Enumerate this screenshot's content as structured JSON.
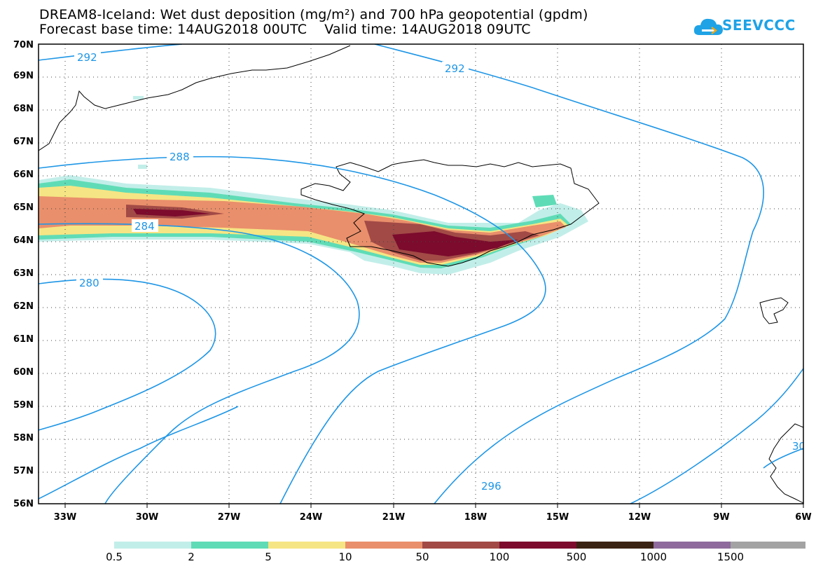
{
  "header": {
    "title_line1": "DREAM8-Iceland: Wet dust deposition (mg/m²) and 700 hPa geopotential (gpdm)",
    "title_line2": "Forecast base time: 14AUG2018 00UTC    Valid time: 14AUG2018 09UTC"
  },
  "logo": {
    "text": "SEEVCCC",
    "icon": "cloud-icon",
    "color": "#1ea3e6"
  },
  "map": {
    "lon_range": [
      -34,
      -6
    ],
    "lat_range": [
      56,
      70
    ],
    "lat_labels": [
      "56N",
      "57N",
      "58N",
      "59N",
      "60N",
      "61N",
      "62N",
      "63N",
      "64N",
      "65N",
      "66N",
      "67N",
      "68N",
      "69N",
      "70N"
    ],
    "lon_labels": [
      "33W",
      "30W",
      "27W",
      "24W",
      "21W",
      "18W",
      "15W",
      "12W",
      "9W",
      "6W"
    ],
    "contour_color": "#1e96e6",
    "contour_labels": [
      "292",
      "292",
      "288",
      "284",
      "280",
      "296",
      "30"
    ]
  },
  "legend": {
    "labels": [
      "0.5",
      "2",
      "5",
      "10",
      "50",
      "100",
      "500",
      "1000",
      "1500"
    ],
    "colors": [
      "#c2eee9",
      "#5fdcb6",
      "#f6e584",
      "#e98f6b",
      "#a24a46",
      "#7c0b2d",
      "#3a2212",
      "#8e6b9c",
      "#a3a3a3"
    ]
  }
}
